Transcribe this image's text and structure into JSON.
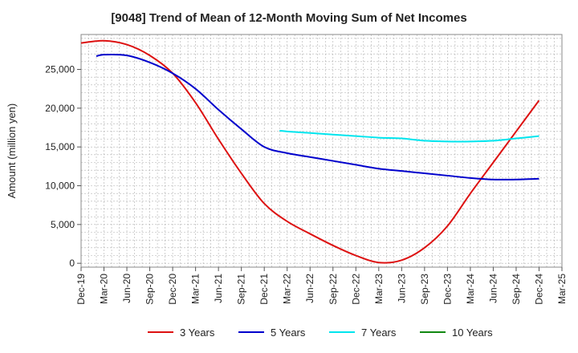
{
  "chart_data": {
    "type": "line",
    "title": "[9048]  Trend of Mean of 12-Month Moving Sum of Net Incomes",
    "ylabel": "Amount (million yen)",
    "xlabel": "",
    "x_ticks": [
      "Dec-19",
      "Mar-20",
      "Jun-20",
      "Sep-20",
      "Dec-20",
      "Mar-21",
      "Jun-21",
      "Sep-21",
      "Dec-21",
      "Mar-22",
      "Jun-22",
      "Sep-22",
      "Dec-22",
      "Mar-23",
      "Jun-23",
      "Sep-23",
      "Dec-23",
      "Mar-24",
      "Jun-24",
      "Sep-24",
      "Dec-24",
      "Mar-25"
    ],
    "y_ticks": [
      0,
      5000,
      10000,
      15000,
      20000,
      25000
    ],
    "y_tick_labels": [
      "0",
      "5,000",
      "10,000",
      "15,000",
      "20,000",
      "25,000"
    ],
    "ylim": [
      -500,
      29500
    ],
    "grid": true,
    "legend_position": "bottom",
    "series": [
      {
        "name": "3 Years",
        "color": "#dd1111",
        "points": [
          [
            "Dec-19",
            28400
          ],
          [
            "Mar-20",
            28700
          ],
          [
            "Jun-20",
            28200
          ],
          [
            "Sep-20",
            26800
          ],
          [
            "Dec-20",
            24500
          ],
          [
            "Mar-21",
            20700
          ],
          [
            "Jun-21",
            16000
          ],
          [
            "Sep-21",
            11600
          ],
          [
            "Dec-21",
            7700
          ],
          [
            "Mar-22",
            5400
          ],
          [
            "Jun-22",
            3800
          ],
          [
            "Sep-22",
            2300
          ],
          [
            "Dec-22",
            1000
          ],
          [
            "Mar-23",
            100
          ],
          [
            "Jun-23",
            400
          ],
          [
            "Sep-23",
            2000
          ],
          [
            "Dec-23",
            4800
          ],
          [
            "Mar-24",
            9000
          ],
          [
            "Jun-24",
            13000
          ],
          [
            "Sep-24",
            17000
          ],
          [
            "Dec-24",
            21000
          ]
        ]
      },
      {
        "name": "5 Years",
        "color": "#0000cc",
        "points": [
          [
            "Feb-20",
            26700
          ],
          [
            "Mar-20",
            26900
          ],
          [
            "Jun-20",
            26800
          ],
          [
            "Sep-20",
            25900
          ],
          [
            "Dec-20",
            24500
          ],
          [
            "Mar-21",
            22500
          ],
          [
            "Jun-21",
            19800
          ],
          [
            "Sep-21",
            17300
          ],
          [
            "Dec-21",
            15000
          ],
          [
            "Mar-22",
            14200
          ],
          [
            "Jun-22",
            13700
          ],
          [
            "Sep-22",
            13200
          ],
          [
            "Dec-22",
            12700
          ],
          [
            "Mar-23",
            12200
          ],
          [
            "Jun-23",
            11900
          ],
          [
            "Sep-23",
            11600
          ],
          [
            "Dec-23",
            11300
          ],
          [
            "Mar-24",
            11000
          ],
          [
            "Jun-24",
            10800
          ],
          [
            "Sep-24",
            10800
          ],
          [
            "Dec-24",
            10900
          ]
        ]
      },
      {
        "name": "7 Years",
        "color": "#00e5ee",
        "points": [
          [
            "Feb-22",
            17100
          ],
          [
            "Mar-22",
            17000
          ],
          [
            "Jun-22",
            16800
          ],
          [
            "Sep-22",
            16600
          ],
          [
            "Dec-22",
            16400
          ],
          [
            "Mar-23",
            16200
          ],
          [
            "Jun-23",
            16100
          ],
          [
            "Sep-23",
            15800
          ],
          [
            "Dec-23",
            15700
          ],
          [
            "Mar-24",
            15700
          ],
          [
            "Jun-24",
            15800
          ],
          [
            "Sep-24",
            16100
          ],
          [
            "Dec-24",
            16400
          ]
        ]
      },
      {
        "name": "10 Years",
        "color": "#118811",
        "points": []
      }
    ]
  }
}
